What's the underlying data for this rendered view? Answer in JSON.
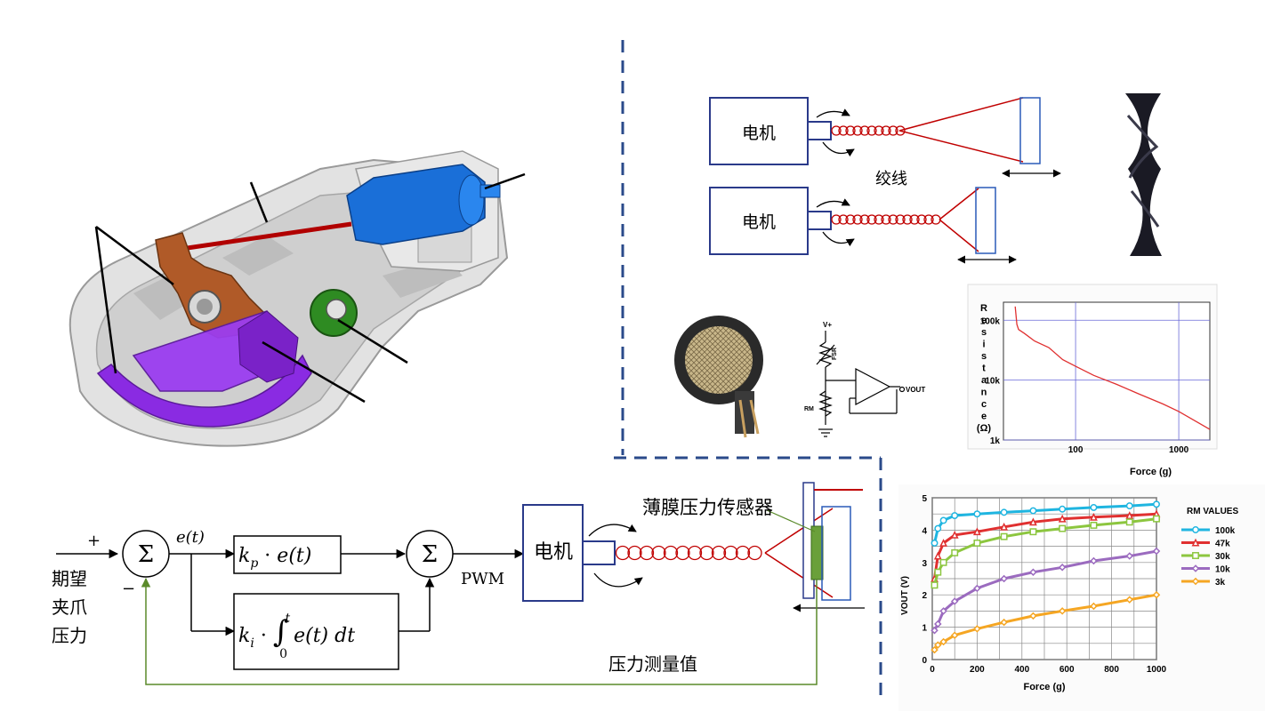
{
  "twist": {
    "motor_label": "电机",
    "twist_label": "绞线"
  },
  "fsr": {
    "v_plus": "V+",
    "fsr_label": "FSR",
    "rm_label": "RM",
    "vout_label": "VOUT"
  },
  "control": {
    "plus": "+",
    "minus": "−",
    "sigma": "Σ",
    "error": "e(t)",
    "input_label": [
      "期望",
      "夹爪",
      "压力"
    ],
    "pwm": "PWM",
    "motor_label": "电机",
    "sensor_label": "薄膜压力传感器",
    "feedback_label": "压力测量值"
  },
  "chart_data": [
    {
      "type": "line",
      "title": "",
      "xlabel": "Force (g)",
      "ylabel": "Resistance (Ω)",
      "ylabel_chars": [
        "R",
        "e",
        "s",
        "i",
        "s",
        "t",
        "a",
        "n",
        "c",
        "e",
        "(Ω)"
      ],
      "xscale": "log",
      "yscale": "log",
      "xlim": [
        20,
        2000
      ],
      "ylim": [
        1000,
        200000
      ],
      "xticks": [
        100,
        1000
      ],
      "xtick_labels": [
        "100",
        "1000"
      ],
      "yticks": [
        1000,
        10000,
        100000
      ],
      "ytick_labels": [
        "1k",
        "10k",
        "100k"
      ],
      "grid": true,
      "color": "#e03030",
      "series": [
        {
          "x": [
            26,
            27,
            28,
            32,
            40,
            55,
            75,
            100,
            150,
            250,
            400,
            700,
            1000,
            1500,
            2000
          ],
          "y": [
            170000,
            85000,
            70000,
            60000,
            45000,
            35000,
            22000,
            17000,
            12000,
            8500,
            6000,
            4000,
            3000,
            2000,
            1500
          ]
        }
      ]
    },
    {
      "type": "line",
      "title": "",
      "xlabel": "Force (g)",
      "ylabel": "VOUT (V)",
      "xlim": [
        0,
        1000
      ],
      "ylim": [
        0,
        5
      ],
      "xticks": [
        0,
        200,
        400,
        600,
        800,
        1000
      ],
      "yticks": [
        0,
        1,
        2,
        3,
        4,
        5
      ],
      "grid": true,
      "legend_title": "RM VALUES",
      "legend_position": "right",
      "series": [
        {
          "name": "100k",
          "color": "#1fb5e0",
          "marker": "circle",
          "x": [
            10,
            25,
            50,
            100,
            200,
            320,
            450,
            580,
            720,
            880,
            1000
          ],
          "y": [
            3.6,
            4.05,
            4.3,
            4.45,
            4.5,
            4.55,
            4.6,
            4.65,
            4.7,
            4.75,
            4.8
          ]
        },
        {
          "name": "47k",
          "color": "#e03030",
          "marker": "triangle",
          "x": [
            10,
            25,
            50,
            100,
            200,
            320,
            450,
            580,
            720,
            880,
            1000
          ],
          "y": [
            2.5,
            3.2,
            3.6,
            3.85,
            3.95,
            4.1,
            4.25,
            4.35,
            4.4,
            4.45,
            4.5
          ]
        },
        {
          "name": "30k",
          "color": "#8cc63f",
          "marker": "square",
          "x": [
            10,
            25,
            50,
            100,
            200,
            320,
            450,
            580,
            720,
            880,
            1000
          ],
          "y": [
            2.3,
            2.7,
            3.0,
            3.3,
            3.6,
            3.8,
            3.95,
            4.05,
            4.15,
            4.25,
            4.35
          ]
        },
        {
          "name": "10k",
          "color": "#9b6bbf",
          "marker": "diamond",
          "x": [
            10,
            25,
            50,
            100,
            200,
            320,
            450,
            580,
            720,
            880,
            1000
          ],
          "y": [
            0.9,
            1.1,
            1.5,
            1.8,
            2.2,
            2.5,
            2.7,
            2.85,
            3.05,
            3.2,
            3.35
          ]
        },
        {
          "name": "3k",
          "color": "#f5a623",
          "marker": "diamond",
          "x": [
            10,
            25,
            50,
            100,
            200,
            320,
            450,
            580,
            720,
            880,
            1000
          ],
          "y": [
            0.3,
            0.45,
            0.55,
            0.75,
            0.95,
            1.15,
            1.35,
            1.5,
            1.65,
            1.85,
            2.0
          ]
        }
      ]
    }
  ]
}
